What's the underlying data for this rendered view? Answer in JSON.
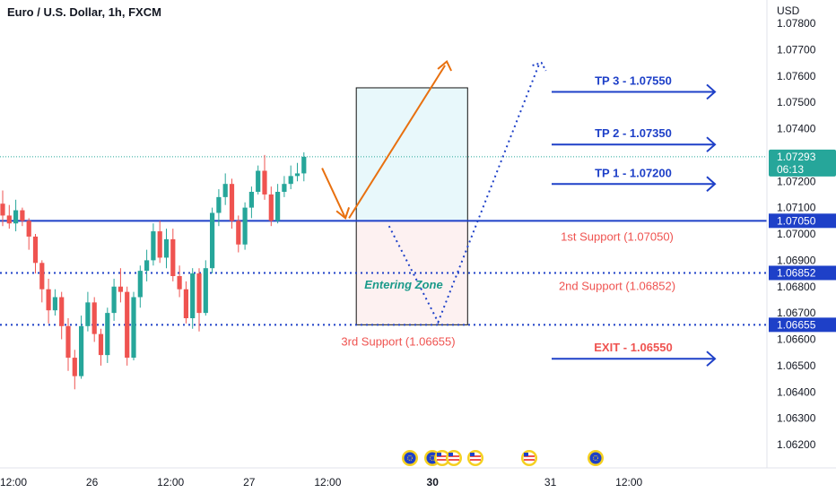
{
  "chart_data": {
    "type": "candlestick",
    "title": "Euro / U.S. Dollar, 1h, FXCM",
    "currency": "USD",
    "ylim": [
      1.0614,
      1.078
    ],
    "y_ticks": [
      "1.07800",
      "1.07700",
      "1.07600",
      "1.07500",
      "1.07400",
      "1.07300",
      "1.07200",
      "1.07100",
      "1.07000",
      "1.06900",
      "1.06800",
      "1.06700",
      "1.06600",
      "1.06500",
      "1.06400",
      "1.06300",
      "1.06200"
    ],
    "x_ticks": [
      {
        "label": "12:00",
        "bar": 0
      },
      {
        "label": "26",
        "bar": 12
      },
      {
        "label": "12:00",
        "bar": 24
      },
      {
        "label": "27",
        "bar": 36
      },
      {
        "label": "12:00",
        "bar": 48
      },
      {
        "label": "30",
        "bar": 64,
        "bold": true
      },
      {
        "label": "31",
        "bar": 82
      },
      {
        "label": "12:00",
        "bar": 94
      }
    ],
    "bull_color": "#26a69a",
    "bear_color": "#ef5350",
    "candles": [
      {
        "o": 1.07115,
        "h": 1.07165,
        "l": 1.0703,
        "c": 1.0707
      },
      {
        "o": 1.0707,
        "h": 1.0711,
        "l": 1.0702,
        "c": 1.0704
      },
      {
        "o": 1.0704,
        "h": 1.0713,
        "l": 1.0701,
        "c": 1.0709
      },
      {
        "o": 1.0709,
        "h": 1.071,
        "l": 1.0703,
        "c": 1.0705
      },
      {
        "o": 1.0705,
        "h": 1.0706,
        "l": 1.0694,
        "c": 1.0699
      },
      {
        "o": 1.0699,
        "h": 1.07,
        "l": 1.0685,
        "c": 1.0689
      },
      {
        "o": 1.0689,
        "h": 1.069,
        "l": 1.0674,
        "c": 1.0679
      },
      {
        "o": 1.0679,
        "h": 1.0683,
        "l": 1.0666,
        "c": 1.0671
      },
      {
        "o": 1.0671,
        "h": 1.0679,
        "l": 1.0669,
        "c": 1.0676
      },
      {
        "o": 1.0676,
        "h": 1.0678,
        "l": 1.066,
        "c": 1.0665
      },
      {
        "o": 1.0665,
        "h": 1.0668,
        "l": 1.0648,
        "c": 1.0653
      },
      {
        "o": 1.0653,
        "h": 1.0656,
        "l": 1.0641,
        "c": 1.0646
      },
      {
        "o": 1.0646,
        "h": 1.0669,
        "l": 1.0645,
        "c": 1.0665
      },
      {
        "o": 1.0665,
        "h": 1.0678,
        "l": 1.0663,
        "c": 1.0674
      },
      {
        "o": 1.0674,
        "h": 1.0676,
        "l": 1.0659,
        "c": 1.0662
      },
      {
        "o": 1.0662,
        "h": 1.0664,
        "l": 1.065,
        "c": 1.0654
      },
      {
        "o": 1.0654,
        "h": 1.0672,
        "l": 1.0651,
        "c": 1.067
      },
      {
        "o": 1.067,
        "h": 1.0683,
        "l": 1.0667,
        "c": 1.068
      },
      {
        "o": 1.068,
        "h": 1.0687,
        "l": 1.0674,
        "c": 1.0678
      },
      {
        "o": 1.0678,
        "h": 1.068,
        "l": 1.065,
        "c": 1.0653
      },
      {
        "o": 1.0653,
        "h": 1.0678,
        "l": 1.0652,
        "c": 1.0676
      },
      {
        "o": 1.0676,
        "h": 1.0688,
        "l": 1.0672,
        "c": 1.0686
      },
      {
        "o": 1.0686,
        "h": 1.0694,
        "l": 1.0682,
        "c": 1.069
      },
      {
        "o": 1.069,
        "h": 1.0704,
        "l": 1.0688,
        "c": 1.0701
      },
      {
        "o": 1.0701,
        "h": 1.0705,
        "l": 1.0689,
        "c": 1.0691
      },
      {
        "o": 1.0691,
        "h": 1.0702,
        "l": 1.0687,
        "c": 1.0698
      },
      {
        "o": 1.0698,
        "h": 1.0702,
        "l": 1.0682,
        "c": 1.0684
      },
      {
        "o": 1.0684,
        "h": 1.0688,
        "l": 1.0676,
        "c": 1.0679
      },
      {
        "o": 1.0679,
        "h": 1.0682,
        "l": 1.0666,
        "c": 1.0668
      },
      {
        "o": 1.0668,
        "h": 1.0687,
        "l": 1.0664,
        "c": 1.0685
      },
      {
        "o": 1.0685,
        "h": 1.0687,
        "l": 1.0663,
        "c": 1.067
      },
      {
        "o": 1.067,
        "h": 1.069,
        "l": 1.0669,
        "c": 1.0687
      },
      {
        "o": 1.0687,
        "h": 1.071,
        "l": 1.0685,
        "c": 1.0708
      },
      {
        "o": 1.0708,
        "h": 1.0717,
        "l": 1.0703,
        "c": 1.0714
      },
      {
        "o": 1.0714,
        "h": 1.0723,
        "l": 1.0711,
        "c": 1.0719
      },
      {
        "o": 1.0719,
        "h": 1.0721,
        "l": 1.0702,
        "c": 1.0705
      },
      {
        "o": 1.0705,
        "h": 1.0707,
        "l": 1.0693,
        "c": 1.0696
      },
      {
        "o": 1.0696,
        "h": 1.0712,
        "l": 1.0694,
        "c": 1.071
      },
      {
        "o": 1.071,
        "h": 1.0718,
        "l": 1.0706,
        "c": 1.0716
      },
      {
        "o": 1.0716,
        "h": 1.0726,
        "l": 1.0715,
        "c": 1.0724
      },
      {
        "o": 1.0724,
        "h": 1.073,
        "l": 1.0713,
        "c": 1.0715
      },
      {
        "o": 1.0715,
        "h": 1.0718,
        "l": 1.0703,
        "c": 1.0705
      },
      {
        "o": 1.0705,
        "h": 1.0719,
        "l": 1.0704,
        "c": 1.0716
      },
      {
        "o": 1.0716,
        "h": 1.0722,
        "l": 1.0714,
        "c": 1.0719
      },
      {
        "o": 1.0719,
        "h": 1.0726,
        "l": 1.0717,
        "c": 1.0722
      },
      {
        "o": 1.0722,
        "h": 1.0727,
        "l": 1.072,
        "c": 1.0723
      },
      {
        "o": 1.0723,
        "h": 1.0731,
        "l": 1.072,
        "c": 1.07293
      }
    ],
    "current_price": {
      "value": 1.07293,
      "label": "1.07293",
      "countdown": "06:13",
      "color": "#26a69a"
    },
    "horizontal_lines": [
      {
        "value": 1.0705,
        "label": "1.07050",
        "style": "solid",
        "color": "#1e40c8"
      },
      {
        "value": 1.06852,
        "label": "1.06852",
        "style": "dotted",
        "color": "#1e40c8"
      },
      {
        "value": 1.06655,
        "label": "1.06655",
        "style": "dotted",
        "color": "#1e40c8"
      }
    ],
    "annotations": {
      "targets": [
        {
          "text": "TP 3 - 1.07550",
          "value": 1.0755,
          "color": "#1e40c8"
        },
        {
          "text": "TP 2 - 1.07350",
          "value": 1.0735,
          "color": "#1e40c8"
        },
        {
          "text": "TP 1 - 1.07200",
          "value": 1.072,
          "color": "#1e40c8"
        },
        {
          "text": "EXIT - 1.06550",
          "value": 1.0655,
          "color": "#ef5350"
        }
      ],
      "supports": [
        {
          "text": "1st Support (1.07050)",
          "value": 1.0705
        },
        {
          "text": "2nd Support (1.06852)",
          "value": 1.06852
        },
        {
          "text": "3rd Support (1.06655)",
          "value": 1.06655
        }
      ],
      "entering_zone": "Entering Zone",
      "profit_zone": {
        "top": 1.07555,
        "bottom": 1.0705,
        "bar_from": 54,
        "bar_to": 71
      },
      "entry_zone": {
        "top": 1.0705,
        "bottom": 1.06655,
        "bar_from": 54,
        "bar_to": 71
      },
      "support_color": "#ef5350",
      "arrow_color": "#e8700f",
      "path_color": "#1e40c8",
      "event_flags": [
        "eu",
        "eu",
        "us",
        "us",
        "us",
        "us",
        "eu"
      ]
    }
  }
}
